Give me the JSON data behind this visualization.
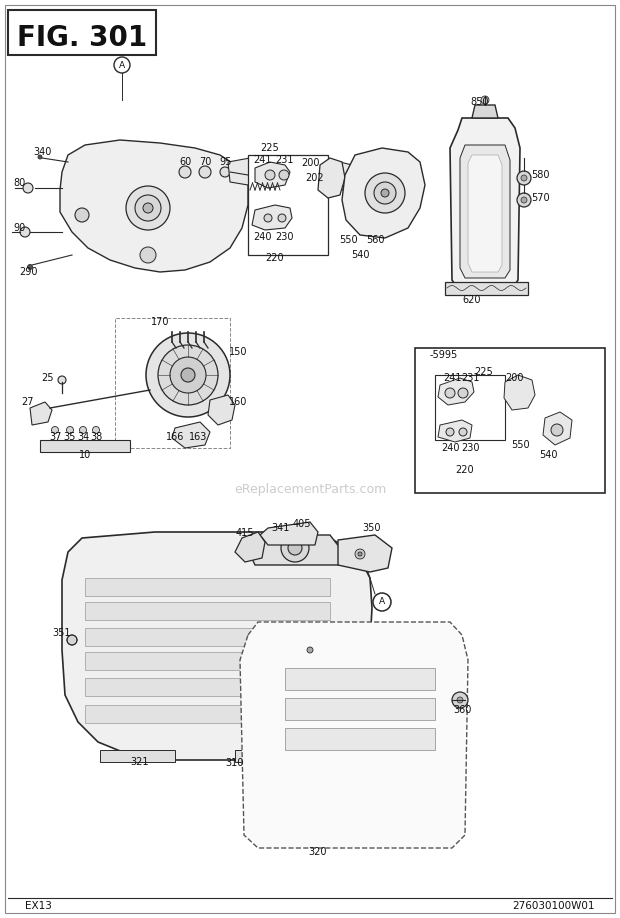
{
  "title": "FIG. 301",
  "bottom_left": "EX13",
  "bottom_right": "276030100W01",
  "watermark": "eReplacementParts.com",
  "bg_color": "#ffffff",
  "line_color": "#2a2a2a",
  "border_color": "#555555"
}
